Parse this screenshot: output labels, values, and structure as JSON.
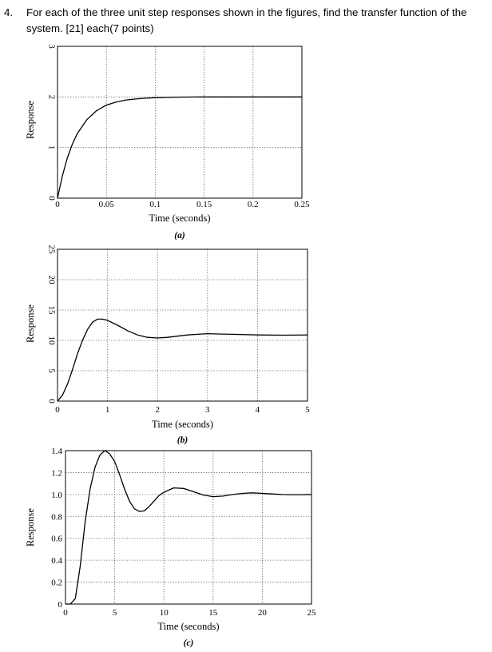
{
  "question": {
    "number": "4.",
    "text": "For each of the three unit step responses shown in the figures, find the transfer function of the system. [21] each(7 points)"
  },
  "chart_data": [
    {
      "type": "line",
      "subplot_label": "(a)",
      "xlabel": "Time (seconds)",
      "ylabel": "Response",
      "xlim": [
        0,
        0.25
      ],
      "ylim": [
        0,
        3
      ],
      "xticks": [
        0,
        0.05,
        0.1,
        0.15,
        0.2,
        0.25
      ],
      "xtick_labels": [
        "0",
        "0.05",
        "0.1",
        "0.15",
        "0.2",
        "0.25"
      ],
      "yticks": [
        0,
        1,
        2,
        3
      ],
      "ytick_labels": [
        "0",
        "1",
        "2",
        "3"
      ],
      "y_labels_rotated": true,
      "grid": true,
      "series": [
        {
          "x": [
            0,
            0.005,
            0.01,
            0.015,
            0.02,
            0.03,
            0.04,
            0.05,
            0.06,
            0.07,
            0.08,
            0.09,
            0.1,
            0.11,
            0.12,
            0.13,
            0.14,
            0.15,
            0.2,
            0.25
          ],
          "y": [
            0,
            0.44,
            0.79,
            1.06,
            1.27,
            1.55,
            1.73,
            1.84,
            1.9,
            1.94,
            1.96,
            1.975,
            1.985,
            1.99,
            1.995,
            1.998,
            1.999,
            2.0,
            2.0,
            2.0
          ]
        }
      ]
    },
    {
      "type": "line",
      "subplot_label": "(b)",
      "xlabel": "Time (seconds)",
      "ylabel": "Response",
      "xlim": [
        0,
        5
      ],
      "ylim": [
        0,
        25
      ],
      "xticks": [
        0,
        1,
        2,
        3,
        4,
        5
      ],
      "xtick_labels": [
        "0",
        "1",
        "2",
        "3",
        "4",
        "5"
      ],
      "yticks": [
        0,
        5,
        10,
        15,
        20,
        25
      ],
      "ytick_labels": [
        "0",
        "5",
        "10",
        "15",
        "20",
        "25"
      ],
      "y_labels_rotated": true,
      "grid": true,
      "series": [
        {
          "x": [
            0,
            0.1,
            0.2,
            0.3,
            0.4,
            0.5,
            0.6,
            0.7,
            0.8,
            0.9,
            1.0,
            1.1,
            1.2,
            1.4,
            1.6,
            1.8,
            2.0,
            2.2,
            2.4,
            2.6,
            2.8,
            3.0,
            3.2,
            3.5,
            4.0,
            4.5,
            5.0
          ],
          "y": [
            0,
            1.0,
            2.8,
            5.2,
            7.8,
            10.0,
            11.8,
            13.0,
            13.5,
            13.5,
            13.3,
            12.9,
            12.5,
            11.6,
            10.9,
            10.5,
            10.4,
            10.5,
            10.7,
            10.9,
            11.0,
            11.1,
            11.05,
            11.0,
            10.9,
            10.85,
            10.9
          ]
        }
      ]
    },
    {
      "type": "line",
      "subplot_label": "(c)",
      "xlabel": "Time (seconds)",
      "ylabel": "Response",
      "xlim": [
        0,
        25
      ],
      "ylim": [
        0,
        1.4
      ],
      "xticks": [
        0,
        5,
        10,
        15,
        20,
        25
      ],
      "xtick_labels": [
        "0",
        "5",
        "10",
        "15",
        "20",
        "25"
      ],
      "yticks": [
        0,
        0.2,
        0.4,
        0.6,
        0.8,
        1.0,
        1.2,
        1.4
      ],
      "ytick_labels": [
        "0",
        "0.2",
        "0.4",
        "0.6",
        "0.8",
        "1.0",
        "1.2",
        "1.4"
      ],
      "y_labels_rotated": false,
      "grid": true,
      "series": [
        {
          "x": [
            0,
            0.5,
            1.0,
            1.5,
            2.0,
            2.5,
            3.0,
            3.5,
            4.0,
            4.5,
            5.0,
            5.5,
            6.0,
            6.5,
            7.0,
            7.5,
            8.0,
            8.5,
            9.0,
            9.5,
            10.0,
            11.0,
            12.0,
            13.0,
            14.0,
            15.0,
            16.0,
            17.0,
            18.0,
            19.0,
            20.0,
            21.0,
            22.0,
            23.0,
            24.0,
            25.0
          ],
          "y": [
            0,
            0.0,
            0.05,
            0.35,
            0.75,
            1.05,
            1.25,
            1.36,
            1.4,
            1.37,
            1.3,
            1.18,
            1.05,
            0.94,
            0.87,
            0.845,
            0.85,
            0.89,
            0.94,
            0.99,
            1.02,
            1.06,
            1.055,
            1.025,
            0.995,
            0.98,
            0.985,
            1.0,
            1.01,
            1.015,
            1.01,
            1.005,
            1.0,
            0.998,
            0.998,
            1.0
          ]
        }
      ]
    }
  ]
}
